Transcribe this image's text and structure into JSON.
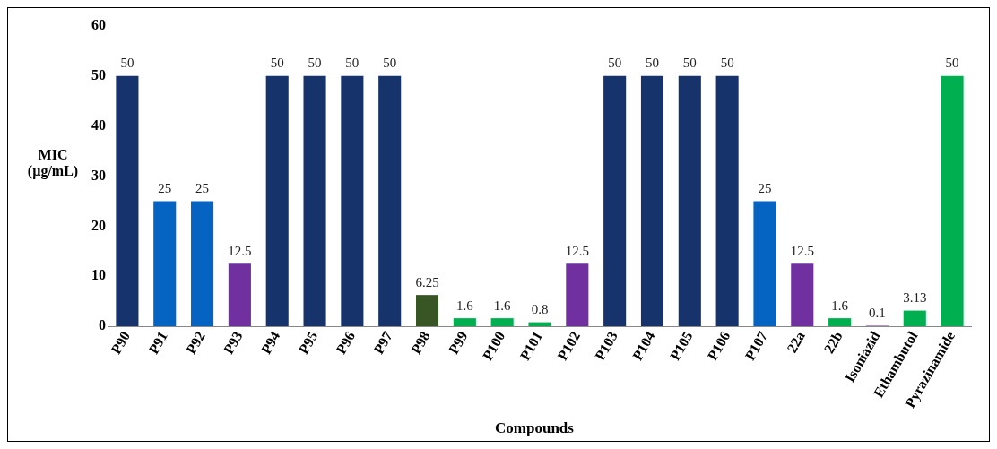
{
  "chart_data": {
    "type": "bar",
    "xlabel": "Compounds",
    "ylabel": "MIC (µg/mL)",
    "categories": [
      "P90",
      "P91",
      "P92",
      "P93",
      "P94",
      "P95",
      "P96",
      "P97",
      "P98",
      "P99",
      "P100",
      "P101",
      "P102",
      "P103",
      "P104",
      "P105",
      "P106",
      "P107",
      "22a",
      "22b",
      "Isoniazid",
      "Ethambutol",
      "Pyrazinamide"
    ],
    "values": [
      50,
      25,
      25,
      12.5,
      50,
      50,
      50,
      50,
      6.25,
      1.6,
      1.6,
      0.8,
      12.5,
      50,
      50,
      50,
      50,
      25,
      12.5,
      1.6,
      0.1,
      3.13,
      50
    ],
    "colors": [
      "#17336b",
      "#0563c1",
      "#0563c1",
      "#7030a0",
      "#17336b",
      "#17336b",
      "#17336b",
      "#17336b",
      "#375623",
      "#00b050",
      "#00b050",
      "#00b050",
      "#7030a0",
      "#17336b",
      "#17336b",
      "#17336b",
      "#17336b",
      "#0563c1",
      "#7030a0",
      "#00b050",
      "#7030a0",
      "#00b050",
      "#00b050"
    ],
    "ylim": [
      0,
      60
    ],
    "yticks": [
      0,
      10,
      20,
      30,
      40,
      50,
      60
    ],
    "grid": false,
    "legend": false,
    "data_labels": true
  }
}
